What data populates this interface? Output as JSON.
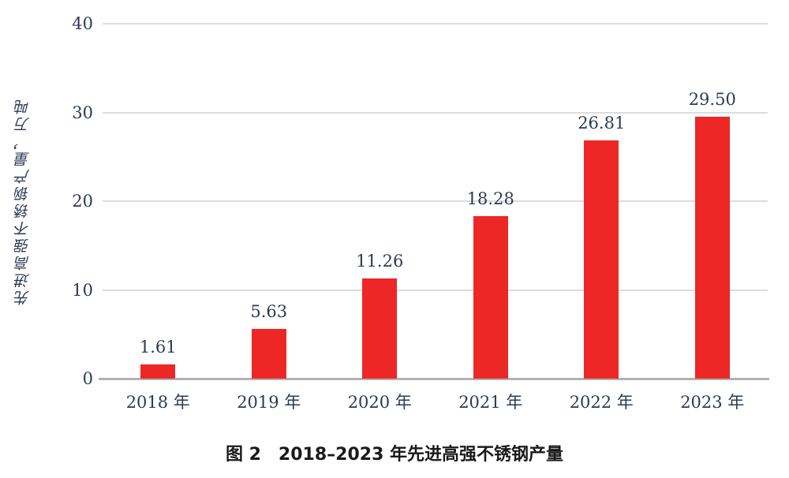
{
  "figure": {
    "caption": "图 2　2018–2023 年先进高强不锈钢产量"
  },
  "chart_data": {
    "type": "bar",
    "title": "图 2 2018–2023 年先进高强不锈钢产量",
    "categories": [
      "2018 年",
      "2019 年",
      "2020 年",
      "2021 年",
      "2022 年",
      "2023 年"
    ],
    "values": [
      1.61,
      5.63,
      11.26,
      18.28,
      26.81,
      29.5
    ],
    "value_labels": [
      "1.61",
      "5.63",
      "11.26",
      "18.28",
      "26.81",
      "29.50"
    ],
    "xlabel": "",
    "ylabel": "先进高强不锈钢产量，万吨",
    "ylim": [
      0,
      40
    ],
    "yticks": [
      0,
      10,
      20,
      30,
      40
    ],
    "ytick_labels": [
      "0",
      "10",
      "20",
      "30",
      "40"
    ],
    "grid": "horizontal",
    "legend": "none",
    "colors": {
      "bar": "#ED2726",
      "gridline": "#dcdcdc",
      "baseline": "#b2b2b2",
      "tick_text": "#2c3a55",
      "caption_text": "#1a1a1a"
    }
  }
}
